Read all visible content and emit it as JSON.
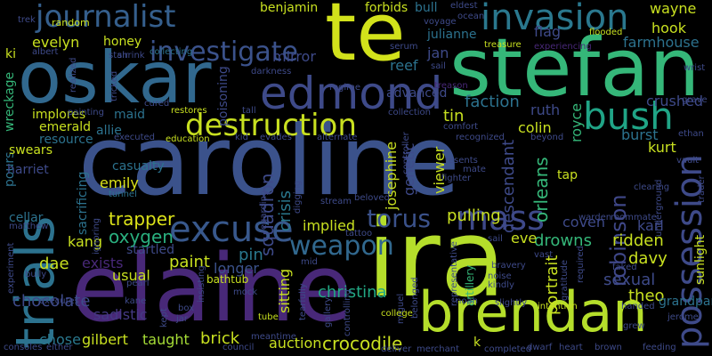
{
  "palette": {
    "background": "#000000",
    "yellow": "#c8e020",
    "green": "#35b779",
    "teal": "#21918c",
    "blue": "#31688e",
    "indigo": "#3e4a89",
    "purple": "#482878",
    "violet": "#440154"
  },
  "words": [
    {
      "text": "caroline",
      "color": "#3b528b"
    },
    {
      "text": "elaine",
      "color": "#482878"
    },
    {
      "text": "ira",
      "color": "#b5de2b"
    },
    {
      "text": "stefan",
      "color": "#35b779"
    },
    {
      "text": "te",
      "color": "#d2e21b"
    },
    {
      "text": "oskar",
      "color": "#31688e"
    },
    {
      "text": "brendan",
      "color": "#b5de2b"
    },
    {
      "text": "trials",
      "color": "#2c728e"
    },
    {
      "text": "edmond",
      "color": "#3e4a89"
    },
    {
      "text": "possession",
      "color": "#3e4a89"
    },
    {
      "text": "invasion",
      "color": "#2a788e"
    },
    {
      "text": "journalist",
      "color": "#355f8d"
    },
    {
      "text": "destruction",
      "color": "#c8e020"
    },
    {
      "text": "bush",
      "color": "#20a486"
    },
    {
      "text": "excuse",
      "color": "#38588c"
    },
    {
      "text": "investigate",
      "color": "#3b528b"
    },
    {
      "text": "mass",
      "color": "#3e4989"
    },
    {
      "text": "weapon",
      "color": "#31688e"
    },
    {
      "text": "torus",
      "color": "#3b528b"
    },
    {
      "text": "robinson",
      "color": "#3f4788"
    },
    {
      "text": "crocodile",
      "color": "#c8e020"
    },
    {
      "text": "christina",
      "color": "#22a884"
    },
    {
      "text": "auction",
      "color": "#c8e020"
    },
    {
      "text": "squadron",
      "color": "#3e4a89"
    },
    {
      "text": "sitting",
      "color": "#c8e020"
    },
    {
      "text": "crisis",
      "color": "#2a788e"
    },
    {
      "text": "oxygen",
      "color": "#2ab07f"
    },
    {
      "text": "trapper",
      "color": "#dce319"
    },
    {
      "text": "gilbert",
      "color": "#c8e020"
    },
    {
      "text": "chocolate",
      "color": "#3e4a89"
    },
    {
      "text": "emily",
      "color": "#dce319"
    },
    {
      "text": "kang",
      "color": "#c8e020"
    },
    {
      "text": "paint",
      "color": "#c8e020"
    },
    {
      "text": "exists",
      "color": "#482878"
    },
    {
      "text": "dae",
      "color": "#c8e020"
    },
    {
      "text": "brick",
      "color": "#c8e020"
    },
    {
      "text": "taught",
      "color": "#a5db36"
    },
    {
      "text": "chose",
      "color": "#2a788e"
    },
    {
      "text": "sadistic",
      "color": "#443983"
    },
    {
      "text": "usual",
      "color": "#c8e020"
    },
    {
      "text": "pin",
      "color": "#2a788e"
    },
    {
      "text": "longer",
      "color": "#3b528b"
    },
    {
      "text": "startled",
      "color": "#3e4a89"
    },
    {
      "text": "implied",
      "color": "#c8e020"
    },
    {
      "text": "pulling",
      "color": "#c8e020"
    },
    {
      "text": "descendant",
      "color": "#3e4a89"
    },
    {
      "text": "orleans",
      "color": "#35b779"
    },
    {
      "text": "drowns",
      "color": "#35b779"
    },
    {
      "text": "eve",
      "color": "#c8e020"
    },
    {
      "text": "coven",
      "color": "#3e4a89"
    },
    {
      "text": "ridden",
      "color": "#c8e020"
    },
    {
      "text": "davy",
      "color": "#c8e020"
    },
    {
      "text": "sexual",
      "color": "#3e4a89"
    },
    {
      "text": "theo",
      "color": "#c8e020"
    },
    {
      "text": "karl",
      "color": "#3e4a89"
    },
    {
      "text": "portrait",
      "color": "#c8e020"
    },
    {
      "text": "kurt",
      "color": "#c8e020"
    },
    {
      "text": "burst",
      "color": "#2c728e"
    },
    {
      "text": "crushed",
      "color": "#3e4a89"
    },
    {
      "text": "farmhouse",
      "color": "#2c728e"
    },
    {
      "text": "hook",
      "color": "#c8e020"
    },
    {
      "text": "flag",
      "color": "#3e4a89"
    },
    {
      "text": "wayne",
      "color": "#c8e020"
    },
    {
      "text": "bull",
      "color": "#2c728e"
    },
    {
      "text": "forbids",
      "color": "#c8e020"
    },
    {
      "text": "benjamin",
      "color": "#c8e020"
    },
    {
      "text": "julianne",
      "color": "#2c728e"
    },
    {
      "text": "jan",
      "color": "#3e4a89"
    },
    {
      "text": "reef",
      "color": "#2c728e"
    },
    {
      "text": "mirror",
      "color": "#3e4a89"
    },
    {
      "text": "advanced",
      "color": "#3e4a89"
    },
    {
      "text": "faction",
      "color": "#2c728e"
    },
    {
      "text": "tin",
      "color": "#c8e020"
    },
    {
      "text": "ruth",
      "color": "#3e4a89"
    },
    {
      "text": "colin",
      "color": "#c8e020"
    },
    {
      "text": "royce",
      "color": "#35b779"
    },
    {
      "text": "genetic",
      "color": "#3e4a89"
    },
    {
      "text": "josephine",
      "color": "#c8e020"
    },
    {
      "text": "viewer",
      "color": "#c8e020"
    },
    {
      "text": "tap",
      "color": "#c8e020"
    },
    {
      "text": "evelyn",
      "color": "#c8e020"
    },
    {
      "text": "honey",
      "color": "#c8e020"
    },
    {
      "text": "ki",
      "color": "#c8e020"
    },
    {
      "text": "wreckage",
      "color": "#35b779"
    },
    {
      "text": "maid",
      "color": "#2c728e"
    },
    {
      "text": "allie",
      "color": "#2c728e"
    },
    {
      "text": "emerald",
      "color": "#c8e020"
    },
    {
      "text": "resource",
      "color": "#2c728e"
    },
    {
      "text": "implores",
      "color": "#c8e020"
    },
    {
      "text": "pours",
      "color": "#2c728e"
    },
    {
      "text": "swears",
      "color": "#c8e020"
    },
    {
      "text": "harriet",
      "color": "#3e4a89"
    },
    {
      "text": "casualty",
      "color": "#2c728e"
    },
    {
      "text": "cellar",
      "color": "#2c728e"
    },
    {
      "text": "sacrificing",
      "color": "#2c728e"
    },
    {
      "text": "poisoning",
      "color": "#3e4a89"
    },
    {
      "text": "bathtub",
      "color": "#c8e020"
    },
    {
      "text": "grandparent",
      "color": "#2c728e"
    },
    {
      "text": "sunlight",
      "color": "#c8e020"
    },
    {
      "text": "random",
      "color": "#c8e020"
    },
    {
      "text": "trek",
      "color": "#3e4a89"
    },
    {
      "text": "albert",
      "color": "#3e4a89"
    },
    {
      "text": "realized",
      "color": "#3e4a89"
    },
    {
      "text": "stair",
      "color": "#3e4a89"
    },
    {
      "text": "shrink",
      "color": "#3e4a89"
    },
    {
      "text": "tricked",
      "color": "#3e4a89"
    },
    {
      "text": "collecting",
      "color": "#2c728e"
    },
    {
      "text": "voyage",
      "color": "#3e4a89"
    },
    {
      "text": "eldest",
      "color": "#3e4a89"
    },
    {
      "text": "ocean",
      "color": "#3e4a89"
    },
    {
      "text": "treasure",
      "color": "#c8e020"
    },
    {
      "text": "treason",
      "color": "#482878"
    },
    {
      "text": "experiencing",
      "color": "#482878"
    },
    {
      "text": "flooded",
      "color": "#c8e020"
    },
    {
      "text": "wrist",
      "color": "#3e4a89"
    },
    {
      "text": "grave",
      "color": "#3e4a89"
    },
    {
      "text": "ethan",
      "color": "#3e4a89"
    },
    {
      "text": "vault",
      "color": "#3e4a89"
    },
    {
      "text": "trader",
      "color": "#3e4a89"
    },
    {
      "text": "darkness",
      "color": "#3e4a89"
    },
    {
      "text": "regime",
      "color": "#3e4a89"
    },
    {
      "text": "serum",
      "color": "#3e4a89"
    },
    {
      "text": "sail",
      "color": "#3e4a89"
    },
    {
      "text": "collection",
      "color": "#3e4a89"
    },
    {
      "text": "comfort",
      "color": "#3e4a89"
    },
    {
      "text": "recognized",
      "color": "#3e4a89"
    },
    {
      "text": "beyond",
      "color": "#3e4a89"
    },
    {
      "text": "restores",
      "color": "#c8e020"
    },
    {
      "text": "tall",
      "color": "#3e4a89"
    },
    {
      "text": "cured",
      "color": "#3e4a89"
    },
    {
      "text": "painting",
      "color": "#3e4a89"
    },
    {
      "text": "executed",
      "color": "#3e4a89"
    },
    {
      "text": "education",
      "color": "#c8e020"
    },
    {
      "text": "kid",
      "color": "#3e4a89"
    },
    {
      "text": "evades",
      "color": "#3e4a89"
    },
    {
      "text": "alternate",
      "color": "#3e4a89"
    },
    {
      "text": "controller",
      "color": "#3e4a89"
    },
    {
      "text": "resents",
      "color": "#3e4a89"
    },
    {
      "text": "mate",
      "color": "#3e4a89"
    },
    {
      "text": "fighter",
      "color": "#3e4a89"
    },
    {
      "text": "beloved",
      "color": "#3e4a89"
    },
    {
      "text": "stream",
      "color": "#3e4a89"
    },
    {
      "text": "digging",
      "color": "#3e4a89"
    },
    {
      "text": "tunnel",
      "color": "#2c728e"
    },
    {
      "text": "regarding",
      "color": "#3e4a89"
    },
    {
      "text": "ignoring",
      "color": "#3e4a89"
    },
    {
      "text": "matthew",
      "color": "#3e4a89"
    },
    {
      "text": "bully",
      "color": "#3e4a89"
    },
    {
      "text": "tattoo",
      "color": "#3e4a89"
    },
    {
      "text": "mid",
      "color": "#3e4a89"
    },
    {
      "text": "belonged",
      "color": "#3e4a89"
    },
    {
      "text": "miguel",
      "color": "#3e4a89"
    },
    {
      "text": "representative",
      "color": "#3e4a89"
    },
    {
      "text": "artillery",
      "color": "#35b779"
    },
    {
      "text": "sail",
      "color": "#3e4a89"
    },
    {
      "text": "vast",
      "color": "#3e4a89"
    },
    {
      "text": "bravery",
      "color": "#3e4a89"
    },
    {
      "text": "kindly",
      "color": "#3e4a89"
    },
    {
      "text": "noise",
      "color": "#3e4a89"
    },
    {
      "text": "required",
      "color": "#3e4a89"
    },
    {
      "text": "gratitude",
      "color": "#3e4a89"
    },
    {
      "text": "faked",
      "color": "#3e4a89"
    },
    {
      "text": "warden",
      "color": "#3e4a89"
    },
    {
      "text": "roommate",
      "color": "#3e4a89"
    },
    {
      "text": "underground",
      "color": "#3e4a89"
    },
    {
      "text": "clearing",
      "color": "#3e4a89"
    },
    {
      "text": "experiment",
      "color": "#3e4a89"
    },
    {
      "text": "executes",
      "color": "#3e4a89"
    },
    {
      "text": "pearl",
      "color": "#3e4a89"
    },
    {
      "text": "kane",
      "color": "#3e4a89"
    },
    {
      "text": "jar",
      "color": "#3e4a89"
    },
    {
      "text": "mock",
      "color": "#3e4a89"
    },
    {
      "text": "box",
      "color": "#3e4a89"
    },
    {
      "text": "kept",
      "color": "#3e4a89"
    },
    {
      "text": "insisting",
      "color": "#3e4a89"
    },
    {
      "text": "tube",
      "color": "#c8e020"
    },
    {
      "text": "tearfully",
      "color": "#3e4a89"
    },
    {
      "text": "gallery",
      "color": "#3e4a89"
    },
    {
      "text": "controlling",
      "color": "#3e4a89"
    },
    {
      "text": "college",
      "color": "#c8e020"
    },
    {
      "text": "noah",
      "color": "#3e4a89"
    },
    {
      "text": "slightly",
      "color": "#3e4a89"
    },
    {
      "text": "intention",
      "color": "#c8e020"
    },
    {
      "text": "handed",
      "color": "#3e4a89"
    },
    {
      "text": "jerome",
      "color": "#3e4a89"
    },
    {
      "text": "grew",
      "color": "#3e4a89"
    },
    {
      "text": "consoles",
      "color": "#3e4a89"
    },
    {
      "text": "either",
      "color": "#3e4a89"
    },
    {
      "text": "meantime",
      "color": "#3e4a89"
    },
    {
      "text": "council",
      "color": "#3e4a89"
    },
    {
      "text": "deliver",
      "color": "#3e4a89"
    },
    {
      "text": "merchant",
      "color": "#3e4a89"
    },
    {
      "text": "completed",
      "color": "#3e4a89"
    },
    {
      "text": "k",
      "color": "#c8e020"
    },
    {
      "text": "dwarf",
      "color": "#3e4a89"
    },
    {
      "text": "heart",
      "color": "#3e4a89"
    },
    {
      "text": "brown",
      "color": "#3e4a89"
    },
    {
      "text": "feeding",
      "color": "#3e4a89"
    },
    {
      "text": "mistaken",
      "color": "#3e4a89"
    },
    {
      "text": "nat",
      "color": "#3e4a89"
    }
  ]
}
